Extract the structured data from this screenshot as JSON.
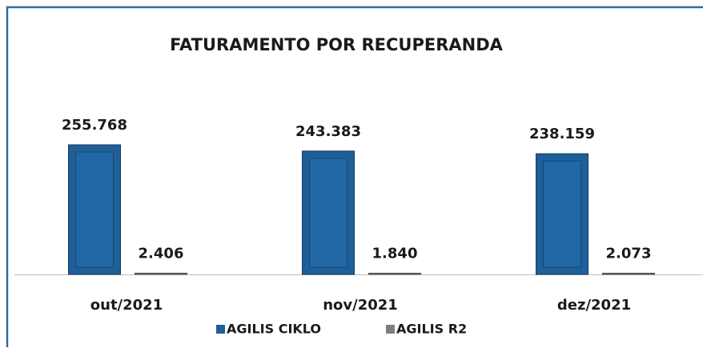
{
  "chart_data": {
    "type": "bar",
    "title": "FATURAMENTO POR RECUPERANDA",
    "categories": [
      "out/2021",
      "nov/2021",
      "dez/2021"
    ],
    "series": [
      {
        "name": "AGILIS CIKLO",
        "color": "#1f5f99",
        "values": [
          255768,
          243383,
          238159
        ],
        "value_labels": [
          "255.768",
          "243.383",
          "238.159"
        ]
      },
      {
        "name": "AGILIS R2",
        "color": "#7f7f7f",
        "values": [
          2406,
          1840,
          2073
        ],
        "value_labels": [
          "2.406",
          "1.840",
          "2.073"
        ]
      }
    ],
    "legend": "bottom"
  }
}
